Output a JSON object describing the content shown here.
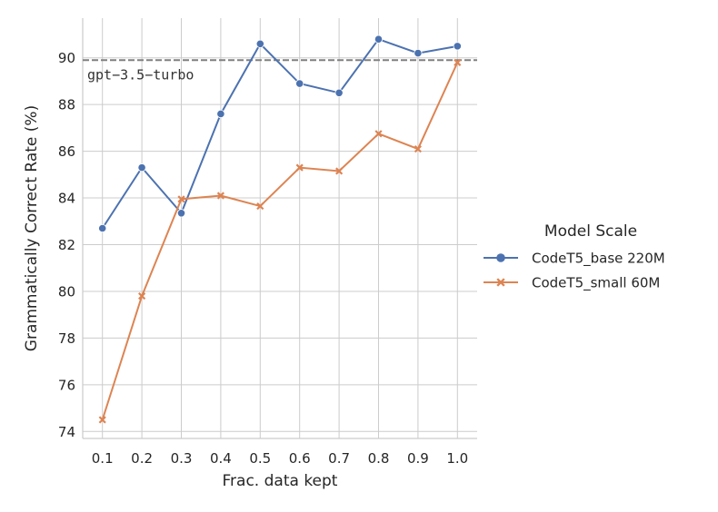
{
  "chart_data": {
    "type": "line",
    "x": [
      0.1,
      0.2,
      0.3,
      0.4,
      0.5,
      0.6,
      0.7,
      0.8,
      0.9,
      1.0
    ],
    "x_tick_labels": [
      "0.1",
      "0.2",
      "0.3",
      "0.4",
      "0.5",
      "0.6",
      "0.7",
      "0.8",
      "0.9",
      "1.0"
    ],
    "y_ticks": [
      74,
      76,
      78,
      80,
      82,
      84,
      86,
      88,
      90
    ],
    "xlabel": "Frac. data kept",
    "ylabel": "Grammatically Correct Rate (%)",
    "xlim": [
      0.05,
      1.05
    ],
    "ylim": [
      73.7,
      91.7
    ],
    "grid": true,
    "series": [
      {
        "name": "CodeT5_base 220M",
        "color": "#4c72b0",
        "marker": "circle",
        "values": [
          82.7,
          85.3,
          83.35,
          87.6,
          90.6,
          88.9,
          88.5,
          90.8,
          90.2,
          90.5
        ]
      },
      {
        "name": "CodeT5_small 60M",
        "color": "#dd8452",
        "marker": "x",
        "values": [
          74.5,
          79.8,
          83.95,
          84.1,
          83.65,
          85.3,
          85.15,
          86.75,
          86.1,
          89.8
        ]
      }
    ],
    "reference_line": {
      "label": "gpt−3.5−turbo",
      "value": 89.9,
      "color": "#808080",
      "style": "dashed"
    },
    "legend": {
      "title": "Model Scale",
      "placement": "outside-right"
    }
  }
}
